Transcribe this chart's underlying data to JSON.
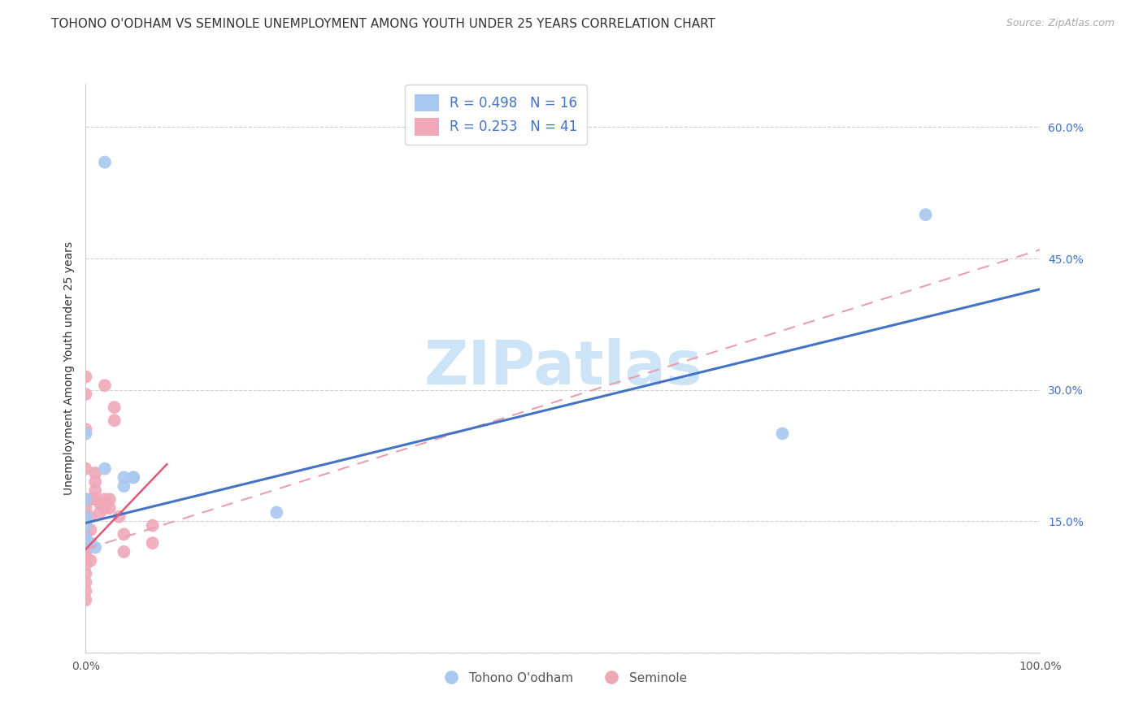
{
  "title": "TOHONO O'ODHAM VS SEMINOLE UNEMPLOYMENT AMONG YOUTH UNDER 25 YEARS CORRELATION CHART",
  "source": "Source: ZipAtlas.com",
  "ylabel": "Unemployment Among Youth under 25 years",
  "xlim": [
    0,
    1.0
  ],
  "ylim": [
    0,
    0.65
  ],
  "xticks": [
    0.0,
    0.2,
    0.4,
    0.6,
    0.8,
    1.0
  ],
  "xticklabels": [
    "0.0%",
    "",
    "",
    "",
    "",
    "100.0%"
  ],
  "yticks": [
    0.0,
    0.15,
    0.3,
    0.45,
    0.6
  ],
  "yticklabels": [
    "",
    "15.0%",
    "30.0%",
    "45.0%",
    "60.0%"
  ],
  "legend_r1": "R = 0.498",
  "legend_n1": "N = 16",
  "legend_r2": "R = 0.253",
  "legend_n2": "N = 41",
  "color_blue": "#a8c8f0",
  "color_pink": "#f0a8b8",
  "line_blue": "#4472c4",
  "line_pink_solid": "#e05878",
  "line_pink_dash": "#e8a0b0",
  "watermark": "ZIPatlas",
  "watermark_color": "#cce4f5",
  "title_fontsize": 11,
  "axis_label_fontsize": 10,
  "tick_fontsize": 10,
  "tick_color_y": "#4472c4",
  "tick_color_x": "#555555",
  "tohono_points": [
    [
      0.02,
      0.56
    ],
    [
      0.0,
      0.25
    ],
    [
      0.05,
      0.2
    ],
    [
      0.0,
      0.175
    ],
    [
      0.0,
      0.155
    ],
    [
      0.0,
      0.145
    ],
    [
      0.0,
      0.13
    ],
    [
      0.0,
      0.125
    ],
    [
      0.01,
      0.12
    ],
    [
      0.02,
      0.21
    ],
    [
      0.04,
      0.2
    ],
    [
      0.04,
      0.19
    ],
    [
      0.05,
      0.2
    ],
    [
      0.2,
      0.16
    ],
    [
      0.73,
      0.25
    ],
    [
      0.88,
      0.5
    ]
  ],
  "seminole_points": [
    [
      0.0,
      0.315
    ],
    [
      0.0,
      0.295
    ],
    [
      0.0,
      0.255
    ],
    [
      0.0,
      0.21
    ],
    [
      0.0,
      0.175
    ],
    [
      0.0,
      0.165
    ],
    [
      0.0,
      0.155
    ],
    [
      0.0,
      0.145
    ],
    [
      0.0,
      0.145
    ],
    [
      0.0,
      0.135
    ],
    [
      0.0,
      0.12
    ],
    [
      0.0,
      0.115
    ],
    [
      0.0,
      0.11
    ],
    [
      0.0,
      0.1
    ],
    [
      0.0,
      0.09
    ],
    [
      0.0,
      0.08
    ],
    [
      0.0,
      0.07
    ],
    [
      0.0,
      0.06
    ],
    [
      0.005,
      0.175
    ],
    [
      0.005,
      0.155
    ],
    [
      0.005,
      0.14
    ],
    [
      0.005,
      0.125
    ],
    [
      0.005,
      0.105
    ],
    [
      0.01,
      0.205
    ],
    [
      0.01,
      0.195
    ],
    [
      0.01,
      0.185
    ],
    [
      0.01,
      0.175
    ],
    [
      0.015,
      0.17
    ],
    [
      0.015,
      0.16
    ],
    [
      0.02,
      0.305
    ],
    [
      0.02,
      0.175
    ],
    [
      0.02,
      0.165
    ],
    [
      0.025,
      0.175
    ],
    [
      0.025,
      0.165
    ],
    [
      0.03,
      0.28
    ],
    [
      0.03,
      0.265
    ],
    [
      0.035,
      0.155
    ],
    [
      0.04,
      0.135
    ],
    [
      0.04,
      0.115
    ],
    [
      0.07,
      0.145
    ],
    [
      0.07,
      0.125
    ]
  ],
  "tohono_line_x": [
    0.0,
    1.0
  ],
  "tohono_line_y": [
    0.148,
    0.415
  ],
  "seminole_solid_line_x": [
    0.0,
    0.085
  ],
  "seminole_solid_line_y": [
    0.118,
    0.215
  ],
  "seminole_dash_line_x": [
    0.0,
    1.0
  ],
  "seminole_dash_line_y": [
    0.118,
    0.46
  ]
}
